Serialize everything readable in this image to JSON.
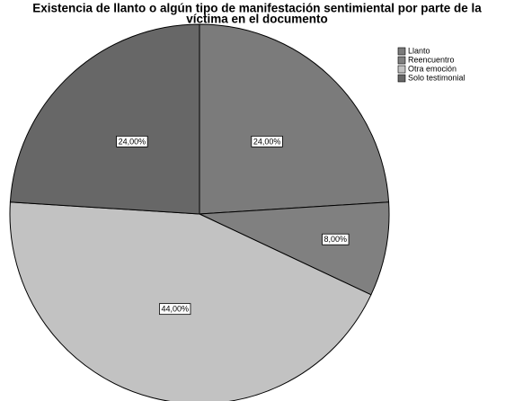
{
  "chart_data": {
    "type": "pie",
    "title": [
      "Existencia de llanto o algún tipo de manifestación sentimiental por parte de la",
      "víctima en el documento"
    ],
    "categories": [
      "Llanto",
      "Reencuentro",
      "Otra emoción",
      "Solo testimonial"
    ],
    "values": [
      24,
      8,
      44,
      24
    ],
    "value_labels": [
      "24,00%",
      "8,00%",
      "44,00%",
      "24,00%"
    ],
    "colors": [
      "#7b7b7b",
      "#808080",
      "#c2c2c2",
      "#676767"
    ],
    "legend": "top-right"
  }
}
